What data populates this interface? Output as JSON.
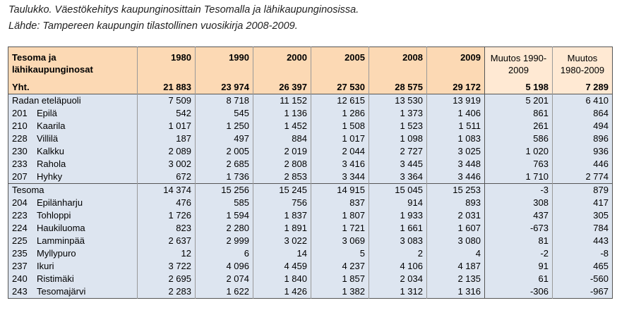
{
  "caption": {
    "line1": "Taulukko. Väestökehitys kaupunginosittain Tesomalla ja lähikaupunginosissa.",
    "line2": "Lähde: Tampereen kaupungin tilastollinen vuosikirja 2008-2009."
  },
  "table": {
    "header": {
      "area": "Tesoma ja lähikaupunginosat",
      "years": [
        "1980",
        "1990",
        "2000",
        "2005",
        "2008",
        "2009"
      ],
      "change1": "Muutos 1990-2009",
      "change2": "Muutos 1980-2009"
    },
    "total": {
      "label": "Yht.",
      "values": [
        "21 883",
        "23 974",
        "26 397",
        "27 530",
        "28 575",
        "29 172"
      ],
      "change1": "5 198",
      "change2": "7 289"
    },
    "groups": [
      {
        "name": "Radan eteläpuoli",
        "values": [
          "7 509",
          "8 718",
          "11 152",
          "12 615",
          "13 530",
          "13 919"
        ],
        "change1": "5 201",
        "change2": "6 410",
        "rows": [
          {
            "code": "201",
            "name": "Epilä",
            "values": [
              "542",
              "545",
              "1 136",
              "1 286",
              "1 373",
              "1 406"
            ],
            "change1": "861",
            "change2": "864"
          },
          {
            "code": "210",
            "name": "Kaarila",
            "values": [
              "1 017",
              "1 250",
              "1 452",
              "1 508",
              "1 523",
              "1 511"
            ],
            "change1": "261",
            "change2": "494"
          },
          {
            "code": "228",
            "name": "Villilä",
            "values": [
              "187",
              "497",
              "884",
              "1 017",
              "1 098",
              "1 083"
            ],
            "change1": "586",
            "change2": "896"
          },
          {
            "code": "230",
            "name": "Kalkku",
            "values": [
              "2 089",
              "2 005",
              "2 019",
              "2 044",
              "2 727",
              "3 025"
            ],
            "change1": "1 020",
            "change2": "936"
          },
          {
            "code": "233",
            "name": "Rahola",
            "values": [
              "3 002",
              "2 685",
              "2 808",
              "3 416",
              "3 445",
              "3 448"
            ],
            "change1": "763",
            "change2": "446"
          },
          {
            "code": "207",
            "name": "Hyhky",
            "values": [
              "672",
              "1 736",
              "2 853",
              "3 344",
              "3 364",
              "3 446"
            ],
            "change1": "1 710",
            "change2": "2 774"
          }
        ]
      },
      {
        "name": "Tesoma",
        "values": [
          "14 374",
          "15 256",
          "15 245",
          "14 915",
          "15 045",
          "15 253"
        ],
        "change1": "-3",
        "change2": "879",
        "rows": [
          {
            "code": "204",
            "name": "Epilänharju",
            "values": [
              "476",
              "585",
              "756",
              "837",
              "914",
              "893"
            ],
            "change1": "308",
            "change2": "417"
          },
          {
            "code": "223",
            "name": "Tohloppi",
            "values": [
              "1 726",
              "1 594",
              "1 837",
              "1 807",
              "1 933",
              "2 031"
            ],
            "change1": "437",
            "change2": "305"
          },
          {
            "code": "224",
            "name": "Haukiluoma",
            "values": [
              "823",
              "2 280",
              "1 891",
              "1 721",
              "1 661",
              "1 607"
            ],
            "change1": "-673",
            "change2": "784"
          },
          {
            "code": "225",
            "name": "Lamminpää",
            "values": [
              "2 637",
              "2 999",
              "3 022",
              "3 069",
              "3 083",
              "3 080"
            ],
            "change1": "81",
            "change2": "443"
          },
          {
            "code": "235",
            "name": "Myllypuro",
            "values": [
              "12",
              "6",
              "14",
              "5",
              "2",
              "4"
            ],
            "change1": "-2",
            "change2": "-8"
          },
          {
            "code": "237",
            "name": "Ikuri",
            "values": [
              "3 722",
              "4 096",
              "4 459",
              "4 237",
              "4 106",
              "4 187"
            ],
            "change1": "91",
            "change2": "465"
          },
          {
            "code": "240",
            "name": "Ristimäki",
            "values": [
              "2 695",
              "2 074",
              "1 840",
              "1 857",
              "2 034",
              "2 135"
            ],
            "change1": "61",
            "change2": "-560"
          },
          {
            "code": "243",
            "name": "Tesomajärvi",
            "values": [
              "2 283",
              "1 622",
              "1 426",
              "1 382",
              "1 312",
              "1 316"
            ],
            "change1": "-306",
            "change2": "-967"
          }
        ]
      }
    ]
  }
}
